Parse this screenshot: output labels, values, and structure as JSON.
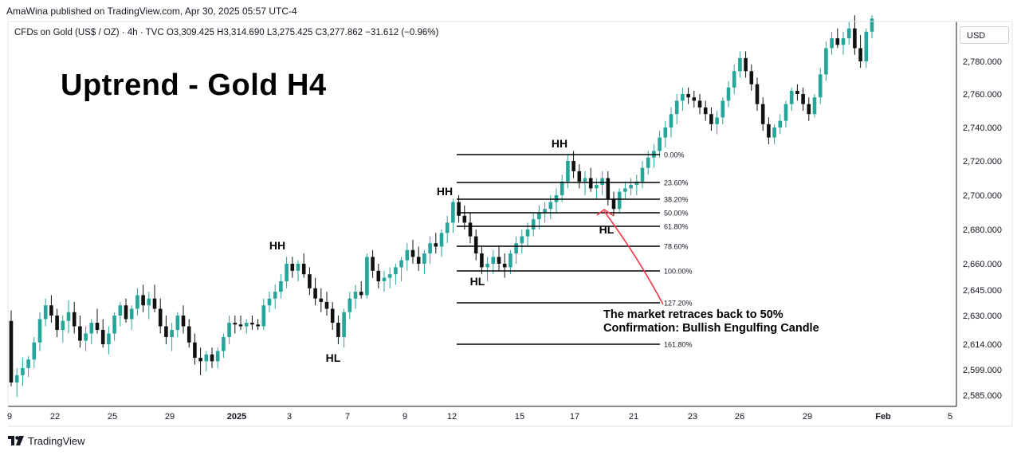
{
  "header": {
    "publisher": "AmaWina published on TradingView.com, Apr 30, 2025 05:57 UTC-4",
    "symbol_line": "CFDs on Gold (US$ / OZ) · 4h · TVC  O3,309.425  H3,314.690  L3,275.425  C3,277.862  −31.612 (−0.96%)"
  },
  "currency_label": "USD",
  "footer": {
    "brand": "TradingView",
    "logo_icon": "tradingview-logo-icon"
  },
  "chart_data": {
    "type": "candlestick",
    "title": "Uptrend - Gold H4",
    "colors": {
      "up": "#26a69a",
      "down": "#111111",
      "fib_line": "#000000",
      "arrow": "#f23645",
      "axis": "#131722",
      "grid": "#e0e3eb"
    },
    "y_axis": {
      "position": "right",
      "ticks": [
        "2,780.000",
        "2,760.000",
        "2,740.000",
        "2,720.000",
        "2,700.000",
        "2,680.000",
        "2,660.000",
        "2,645.000",
        "2,630.000",
        "2,614.000",
        "2,599.000",
        "2,585.000"
      ]
    },
    "x_axis": {
      "ticks": [
        "9",
        "22",
        "25",
        "29",
        "2025",
        "3",
        "7",
        "9",
        "12",
        "15",
        "17",
        "21",
        "23",
        "26",
        "29",
        "Feb",
        "5"
      ]
    },
    "pivot_labels": [
      "HH",
      "HL",
      "HH",
      "HL",
      "HH",
      "HL"
    ],
    "fib_levels": [
      {
        "label": "0.00%",
        "price": 2725
      },
      {
        "label": "23.60%",
        "price": 2709
      },
      {
        "label": "38.20%",
        "price": 2699
      },
      {
        "label": "50.00%",
        "price": 2691
      },
      {
        "label": "61.80%",
        "price": 2683
      },
      {
        "label": "78.60%",
        "price": 2671
      },
      {
        "label": "100.00%",
        "price": 2656
      },
      {
        "label": "127.20%",
        "price": 2637
      },
      {
        "label": "161.80%",
        "price": 2612
      }
    ],
    "annotation": {
      "lines": [
        "The market retraces back to 50%",
        "Confirmation: Bullish Engulfing Candle"
      ]
    },
    "candles": [
      [
        2627,
        2633,
        2590,
        2592
      ],
      [
        2592,
        2600,
        2584,
        2596
      ],
      [
        2596,
        2606,
        2590,
        2600
      ],
      [
        2600,
        2607,
        2595,
        2605
      ],
      [
        2605,
        2618,
        2600,
        2615
      ],
      [
        2615,
        2632,
        2610,
        2628
      ],
      [
        2628,
        2640,
        2624,
        2636
      ],
      [
        2636,
        2642,
        2626,
        2630
      ],
      [
        2630,
        2634,
        2618,
        2622
      ],
      [
        2622,
        2630,
        2615,
        2627
      ],
      [
        2627,
        2639,
        2620,
        2632
      ],
      [
        2632,
        2638,
        2620,
        2624
      ],
      [
        2624,
        2630,
        2612,
        2616
      ],
      [
        2616,
        2624,
        2610,
        2620
      ],
      [
        2620,
        2628,
        2614,
        2626
      ],
      [
        2626,
        2634,
        2620,
        2622
      ],
      [
        2622,
        2628,
        2612,
        2614
      ],
      [
        2614,
        2624,
        2608,
        2620
      ],
      [
        2620,
        2632,
        2616,
        2630
      ],
      [
        2630,
        2638,
        2624,
        2636
      ],
      [
        2636,
        2640,
        2626,
        2628
      ],
      [
        2628,
        2636,
        2622,
        2634
      ],
      [
        2634,
        2646,
        2630,
        2642
      ],
      [
        2642,
        2648,
        2632,
        2636
      ],
      [
        2636,
        2644,
        2628,
        2640
      ],
      [
        2640,
        2648,
        2632,
        2634
      ],
      [
        2634,
        2640,
        2620,
        2624
      ],
      [
        2624,
        2630,
        2614,
        2618
      ],
      [
        2618,
        2626,
        2610,
        2622
      ],
      [
        2622,
        2632,
        2618,
        2630
      ],
      [
        2630,
        2636,
        2620,
        2624
      ],
      [
        2624,
        2628,
        2612,
        2615
      ],
      [
        2615,
        2620,
        2602,
        2606
      ],
      [
        2606,
        2612,
        2596,
        2604
      ],
      [
        2604,
        2610,
        2598,
        2608
      ],
      [
        2608,
        2612,
        2600,
        2604
      ],
      [
        2604,
        2612,
        2600,
        2610
      ],
      [
        2610,
        2620,
        2606,
        2618
      ],
      [
        2618,
        2630,
        2614,
        2626
      ],
      [
        2626,
        2630,
        2620,
        2625
      ],
      [
        2625,
        2630,
        2622,
        2624
      ],
      [
        2624,
        2628,
        2620,
        2626
      ],
      [
        2626,
        2630,
        2622,
        2625
      ],
      [
        2625,
        2628,
        2622,
        2624
      ],
      [
        2624,
        2640,
        2622,
        2636
      ],
      [
        2636,
        2644,
        2632,
        2640
      ],
      [
        2640,
        2648,
        2634,
        2644
      ],
      [
        2644,
        2654,
        2640,
        2650
      ],
      [
        2650,
        2664,
        2646,
        2660
      ],
      [
        2660,
        2664,
        2652,
        2656
      ],
      [
        2656,
        2662,
        2650,
        2660
      ],
      [
        2660,
        2666,
        2652,
        2654
      ],
      [
        2654,
        2658,
        2642,
        2646
      ],
      [
        2646,
        2652,
        2636,
        2640
      ],
      [
        2640,
        2646,
        2632,
        2638
      ],
      [
        2638,
        2644,
        2630,
        2634
      ],
      [
        2634,
        2638,
        2622,
        2626
      ],
      [
        2626,
        2630,
        2614,
        2618
      ],
      [
        2618,
        2634,
        2612,
        2632
      ],
      [
        2632,
        2644,
        2628,
        2640
      ],
      [
        2640,
        2648,
        2634,
        2644
      ],
      [
        2644,
        2650,
        2640,
        2642
      ],
      [
        2642,
        2666,
        2640,
        2664
      ],
      [
        2664,
        2668,
        2652,
        2656
      ],
      [
        2656,
        2660,
        2646,
        2650
      ],
      [
        2650,
        2656,
        2644,
        2652
      ],
      [
        2652,
        2658,
        2646,
        2654
      ],
      [
        2654,
        2660,
        2648,
        2658
      ],
      [
        2658,
        2664,
        2650,
        2662
      ],
      [
        2662,
        2672,
        2656,
        2668
      ],
      [
        2668,
        2674,
        2660,
        2664
      ],
      [
        2664,
        2670,
        2656,
        2660
      ],
      [
        2660,
        2668,
        2654,
        2666
      ],
      [
        2666,
        2676,
        2660,
        2672
      ],
      [
        2672,
        2678,
        2666,
        2670
      ],
      [
        2670,
        2680,
        2664,
        2678
      ],
      [
        2678,
        2688,
        2672,
        2684
      ],
      [
        2684,
        2698,
        2678,
        2696
      ],
      [
        2696,
        2700,
        2684,
        2688
      ],
      [
        2688,
        2694,
        2680,
        2684
      ],
      [
        2684,
        2690,
        2672,
        2676
      ],
      [
        2676,
        2680,
        2662,
        2666
      ],
      [
        2666,
        2670,
        2654,
        2658
      ],
      [
        2658,
        2664,
        2650,
        2660
      ],
      [
        2660,
        2668,
        2654,
        2664
      ],
      [
        2664,
        2670,
        2656,
        2660
      ],
      [
        2660,
        2666,
        2652,
        2658
      ],
      [
        2658,
        2668,
        2654,
        2666
      ],
      [
        2666,
        2676,
        2660,
        2672
      ],
      [
        2672,
        2680,
        2666,
        2676
      ],
      [
        2676,
        2684,
        2670,
        2680
      ],
      [
        2680,
        2690,
        2676,
        2686
      ],
      [
        2686,
        2694,
        2680,
        2690
      ],
      [
        2690,
        2696,
        2684,
        2692
      ],
      [
        2692,
        2700,
        2686,
        2696
      ],
      [
        2696,
        2704,
        2690,
        2700
      ],
      [
        2700,
        2712,
        2696,
        2708
      ],
      [
        2708,
        2724,
        2704,
        2720
      ],
      [
        2720,
        2726,
        2710,
        2714
      ],
      [
        2714,
        2718,
        2704,
        2708
      ],
      [
        2708,
        2714,
        2700,
        2710
      ],
      [
        2710,
        2716,
        2702,
        2704
      ],
      [
        2704,
        2710,
        2698,
        2706
      ],
      [
        2706,
        2714,
        2700,
        2710
      ],
      [
        2710,
        2714,
        2694,
        2698
      ],
      [
        2698,
        2702,
        2688,
        2692
      ],
      [
        2692,
        2704,
        2690,
        2702
      ],
      [
        2702,
        2708,
        2698,
        2704
      ],
      [
        2704,
        2710,
        2700,
        2706
      ],
      [
        2706,
        2712,
        2700,
        2708
      ],
      [
        2708,
        2720,
        2704,
        2716
      ],
      [
        2716,
        2726,
        2712,
        2722
      ],
      [
        2722,
        2730,
        2716,
        2726
      ],
      [
        2726,
        2738,
        2722,
        2734
      ],
      [
        2734,
        2744,
        2728,
        2740
      ],
      [
        2740,
        2752,
        2734,
        2748
      ],
      [
        2748,
        2760,
        2742,
        2756
      ],
      [
        2756,
        2764,
        2750,
        2760
      ],
      [
        2760,
        2764,
        2754,
        2758
      ],
      [
        2758,
        2762,
        2752,
        2756
      ],
      [
        2756,
        2760,
        2748,
        2752
      ],
      [
        2752,
        2756,
        2744,
        2748
      ],
      [
        2748,
        2752,
        2738,
        2742
      ],
      [
        2742,
        2750,
        2736,
        2746
      ],
      [
        2746,
        2758,
        2742,
        2756
      ],
      [
        2756,
        2768,
        2752,
        2764
      ],
      [
        2764,
        2778,
        2760,
        2774
      ],
      [
        2774,
        2786,
        2770,
        2782
      ],
      [
        2782,
        2786,
        2770,
        2774
      ],
      [
        2774,
        2778,
        2762,
        2766
      ],
      [
        2766,
        2770,
        2750,
        2754
      ],
      [
        2754,
        2758,
        2738,
        2742
      ],
      [
        2742,
        2746,
        2730,
        2734
      ],
      [
        2734,
        2742,
        2730,
        2740
      ],
      [
        2740,
        2748,
        2736,
        2744
      ],
      [
        2744,
        2756,
        2740,
        2754
      ],
      [
        2754,
        2764,
        2750,
        2762
      ],
      [
        2762,
        2766,
        2756,
        2760
      ],
      [
        2760,
        2764,
        2750,
        2754
      ],
      [
        2754,
        2758,
        2744,
        2748
      ],
      [
        2748,
        2760,
        2746,
        2758
      ],
      [
        2758,
        2776,
        2754,
        2772
      ],
      [
        2772,
        2792,
        2768,
        2788
      ],
      [
        2788,
        2798,
        2784,
        2794
      ],
      [
        2794,
        2800,
        2788,
        2790
      ],
      [
        2790,
        2798,
        2784,
        2794
      ],
      [
        2794,
        2804,
        2790,
        2800
      ],
      [
        2800,
        2808,
        2784,
        2788
      ],
      [
        2788,
        2796,
        2776,
        2780
      ],
      [
        2780,
        2800,
        2776,
        2798
      ],
      [
        2798,
        2808,
        2794,
        2806
      ]
    ]
  }
}
